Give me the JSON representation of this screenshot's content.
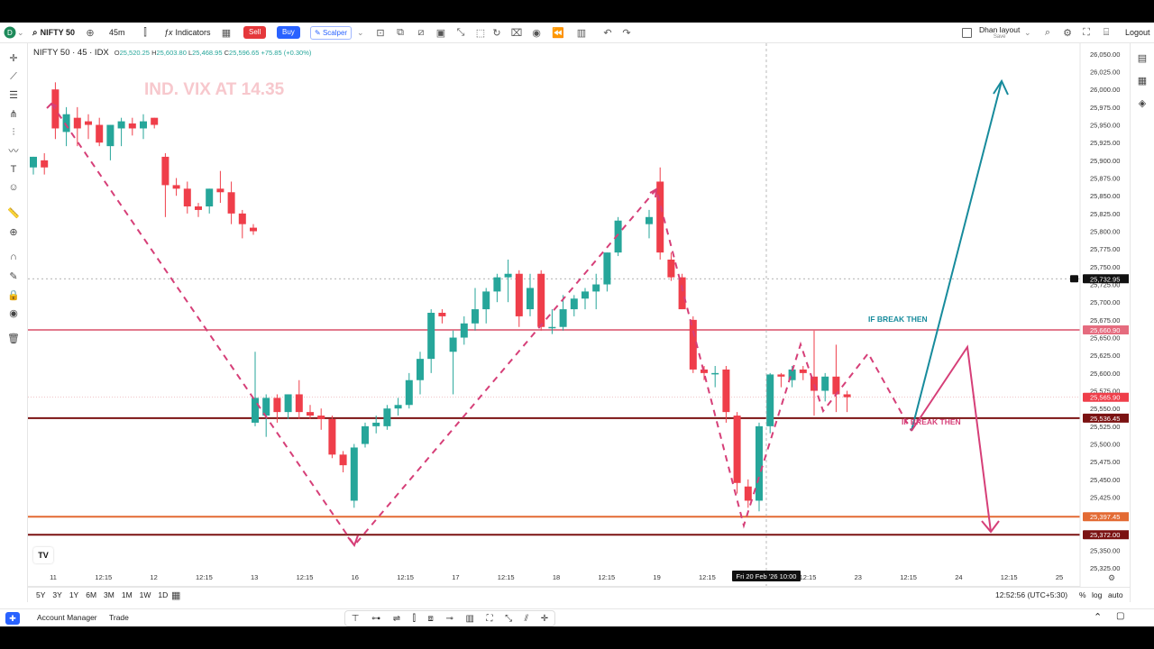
{
  "symbol": {
    "name": "NIFTY 50 · 45 · IDX",
    "interval": "45m"
  },
  "toolbar": {
    "indicators": "Indicators",
    "sell": "Sell",
    "buy": "Buy",
    "scalper": "Scalper",
    "layout_name": "Dhan layout",
    "layout_sub": "Save",
    "logout": "Logout"
  },
  "ohlc": {
    "o": "25,520.25",
    "h": "25,603.80",
    "l": "25,468.95",
    "c": "25,596.65",
    "change": "+75.85 (+0.30%)"
  },
  "colors": {
    "up": "#26a69a",
    "down": "#ef3e4a",
    "annot": "#d63f78",
    "teal": "#178b9c",
    "pink": "#e27b8e",
    "maroon": "#7b1212",
    "orange": "#e36a33"
  },
  "annotations": {
    "vix": "IND. VIX AT 14.35",
    "break_up": "IF BREAK THEN",
    "break_down": "IF BREAK THEN"
  },
  "price_axis": {
    "ticks": [
      "26,050.00",
      "26,025.00",
      "26,000.00",
      "25,975.00",
      "25,950.00",
      "25,925.00",
      "25,900.00",
      "25,875.00",
      "25,850.00",
      "25,825.00",
      "25,800.00",
      "25,775.00",
      "25,750.00",
      "25,725.00",
      "25,700.00",
      "25,675.00",
      "25,650.00",
      "25,625.00",
      "25,600.00",
      "25,575.00",
      "25,550.00",
      "25,525.00",
      "25,500.00",
      "25,475.00",
      "25,450.00",
      "25,425.00",
      "25,400.00",
      "25,375.00",
      "25,350.00",
      "25,325.00"
    ],
    "badges": [
      {
        "label": "25,732.95",
        "value": 25732.95,
        "kind": "cross"
      },
      {
        "label": "25,660.90",
        "value": 25660.9,
        "kind": "pink"
      },
      {
        "label": "25,565.90",
        "value": 25565.9,
        "kind": "current"
      },
      {
        "label": "25,536.45",
        "value": 25536.45,
        "kind": "maroon"
      },
      {
        "label": "25,397.45",
        "value": 25397.45,
        "kind": "orange"
      },
      {
        "label": "25,372.00",
        "value": 25372,
        "kind": "maroon"
      }
    ]
  },
  "time_axis": {
    "ticks": [
      "11",
      "12:15",
      "12",
      "12:15",
      "13",
      "12:15",
      "16",
      "12:15",
      "17",
      "12:15",
      "18",
      "12:15",
      "19",
      "12:15",
      "20",
      "12:15",
      "23",
      "12:15",
      "24",
      "12:15",
      "25"
    ],
    "crosshair_label": "Fri 20 Feb '26   10:00"
  },
  "ranges": [
    "5Y",
    "3Y",
    "1Y",
    "6M",
    "3M",
    "1M",
    "1W",
    "1D"
  ],
  "status": {
    "clock": "12:52:56 (UTC+5:30)",
    "percent": "%",
    "log": "log",
    "auto": "auto"
  },
  "tabs": [
    "Account Manager",
    "Trade"
  ],
  "chart_data": {
    "type": "candlestick",
    "title": "NIFTY 50 · 45 · IDX",
    "ylim": [
      25310,
      26060
    ],
    "candles": [
      {
        "o": 25890,
        "h": 25905,
        "l": 25880,
        "c": 25905
      },
      {
        "o": 25900,
        "h": 25910,
        "l": 25880,
        "c": 25890
      },
      {
        "o": 26000,
        "h": 26010,
        "l": 25930,
        "c": 25945
      },
      {
        "o": 25940,
        "h": 25975,
        "l": 25920,
        "c": 25965
      },
      {
        "o": 25960,
        "h": 25975,
        "l": 25920,
        "c": 25945
      },
      {
        "o": 25955,
        "h": 25965,
        "l": 25930,
        "c": 25950
      },
      {
        "o": 25950,
        "h": 25960,
        "l": 25920,
        "c": 25925
      },
      {
        "o": 25920,
        "h": 25950,
        "l": 25900,
        "c": 25950
      },
      {
        "o": 25945,
        "h": 25960,
        "l": 25920,
        "c": 25955
      },
      {
        "o": 25952,
        "h": 25960,
        "l": 25935,
        "c": 25945
      },
      {
        "o": 25945,
        "h": 25965,
        "l": 25930,
        "c": 25955
      },
      {
        "o": 25960,
        "h": 25960,
        "l": 25945,
        "c": 25950
      },
      {
        "o": 25905,
        "h": 25910,
        "l": 25820,
        "c": 25865
      },
      {
        "o": 25865,
        "h": 25875,
        "l": 25850,
        "c": 25860
      },
      {
        "o": 25860,
        "h": 25870,
        "l": 25825,
        "c": 25835
      },
      {
        "o": 25835,
        "h": 25840,
        "l": 25820,
        "c": 25830
      },
      {
        "o": 25835,
        "h": 25860,
        "l": 25825,
        "c": 25860
      },
      {
        "o": 25860,
        "h": 25885,
        "l": 25840,
        "c": 25855
      },
      {
        "o": 25855,
        "h": 25870,
        "l": 25810,
        "c": 25825
      },
      {
        "o": 25825,
        "h": 25830,
        "l": 25790,
        "c": 25810
      },
      {
        "o": 25805,
        "h": 25810,
        "l": 25795,
        "c": 25800
      },
      {
        "o": 25530,
        "h": 25630,
        "l": 25525,
        "c": 25565
      },
      {
        "o": 25540,
        "h": 25570,
        "l": 25510,
        "c": 25565
      },
      {
        "o": 25565,
        "h": 25570,
        "l": 25530,
        "c": 25545
      },
      {
        "o": 25545,
        "h": 25570,
        "l": 25535,
        "c": 25570
      },
      {
        "o": 25570,
        "h": 25590,
        "l": 25535,
        "c": 25545
      },
      {
        "o": 25545,
        "h": 25555,
        "l": 25535,
        "c": 25540
      },
      {
        "o": 25540,
        "h": 25550,
        "l": 25520,
        "c": 25535
      },
      {
        "o": 25535,
        "h": 25540,
        "l": 25480,
        "c": 25485
      },
      {
        "o": 25485,
        "h": 25490,
        "l": 25460,
        "c": 25470
      },
      {
        "o": 25420,
        "h": 25500,
        "l": 25410,
        "c": 25495
      },
      {
        "o": 25500,
        "h": 25530,
        "l": 25495,
        "c": 25525
      },
      {
        "o": 25525,
        "h": 25540,
        "l": 25515,
        "c": 25530
      },
      {
        "o": 25525,
        "h": 25555,
        "l": 25520,
        "c": 25550
      },
      {
        "o": 25550,
        "h": 25565,
        "l": 25540,
        "c": 25555
      },
      {
        "o": 25555,
        "h": 25600,
        "l": 25550,
        "c": 25590
      },
      {
        "o": 25590,
        "h": 25630,
        "l": 25570,
        "c": 25620
      },
      {
        "o": 25620,
        "h": 25690,
        "l": 25600,
        "c": 25685
      },
      {
        "o": 25685,
        "h": 25690,
        "l": 25670,
        "c": 25680
      },
      {
        "o": 25630,
        "h": 25660,
        "l": 25570,
        "c": 25650
      },
      {
        "o": 25650,
        "h": 25680,
        "l": 25640,
        "c": 25670
      },
      {
        "o": 25670,
        "h": 25720,
        "l": 25660,
        "c": 25690
      },
      {
        "o": 25690,
        "h": 25720,
        "l": 25670,
        "c": 25715
      },
      {
        "o": 25715,
        "h": 25740,
        "l": 25700,
        "c": 25735
      },
      {
        "o": 25735,
        "h": 25760,
        "l": 25700,
        "c": 25740
      },
      {
        "o": 25740,
        "h": 25745,
        "l": 25665,
        "c": 25680
      },
      {
        "o": 25690,
        "h": 25740,
        "l": 25680,
        "c": 25720
      },
      {
        "o": 25740,
        "h": 25745,
        "l": 25660,
        "c": 25665
      },
      {
        "o": 25665,
        "h": 25690,
        "l": 25655,
        "c": 25665
      },
      {
        "o": 25665,
        "h": 25710,
        "l": 25660,
        "c": 25690
      },
      {
        "o": 25690,
        "h": 25710,
        "l": 25680,
        "c": 25705
      },
      {
        "o": 25705,
        "h": 25720,
        "l": 25690,
        "c": 25715
      },
      {
        "o": 25715,
        "h": 25740,
        "l": 25690,
        "c": 25725
      },
      {
        "o": 25725,
        "h": 25770,
        "l": 25715,
        "c": 25770
      },
      {
        "o": 25770,
        "h": 25820,
        "l": 25765,
        "c": 25815
      },
      {
        "o": 25810,
        "h": 25830,
        "l": 25790,
        "c": 25820
      },
      {
        "o": 25870,
        "h": 25890,
        "l": 25760,
        "c": 25770
      },
      {
        "o": 25760,
        "h": 25770,
        "l": 25730,
        "c": 25735
      },
      {
        "o": 25735,
        "h": 25740,
        "l": 25690,
        "c": 25690
      },
      {
        "o": 25675,
        "h": 25680,
        "l": 25600,
        "c": 25605
      },
      {
        "o": 25605,
        "h": 25610,
        "l": 25590,
        "c": 25600
      },
      {
        "o": 25600,
        "h": 25610,
        "l": 25580,
        "c": 25600
      },
      {
        "o": 25605,
        "h": 25610,
        "l": 25530,
        "c": 25545
      },
      {
        "o": 25540,
        "h": 25545,
        "l": 25430,
        "c": 25445
      },
      {
        "o": 25440,
        "h": 25450,
        "l": 25410,
        "c": 25420
      },
      {
        "o": 25420,
        "h": 25530,
        "l": 25405,
        "c": 25525
      },
      {
        "o": 25525,
        "h": 25600,
        "l": 25515,
        "c": 25598
      },
      {
        "o": 25598,
        "h": 25600,
        "l": 25580,
        "c": 25595
      },
      {
        "o": 25590,
        "h": 25610,
        "l": 25580,
        "c": 25605
      },
      {
        "o": 25605,
        "h": 25610,
        "l": 25590,
        "c": 25600
      },
      {
        "o": 25595,
        "h": 25660,
        "l": 25540,
        "c": 25575
      },
      {
        "o": 25575,
        "h": 25600,
        "l": 25560,
        "c": 25595
      },
      {
        "o": 25595,
        "h": 25640,
        "l": 25545,
        "c": 25570
      },
      {
        "o": 25570,
        "h": 25575,
        "l": 25545,
        "c": 25566
      }
    ],
    "lines": [
      {
        "name": "resistance",
        "value": 25660.9
      },
      {
        "name": "support",
        "value": 25536.45
      },
      {
        "name": "target",
        "value": 25397.45
      },
      {
        "name": "low",
        "value": 25372.0
      }
    ]
  }
}
